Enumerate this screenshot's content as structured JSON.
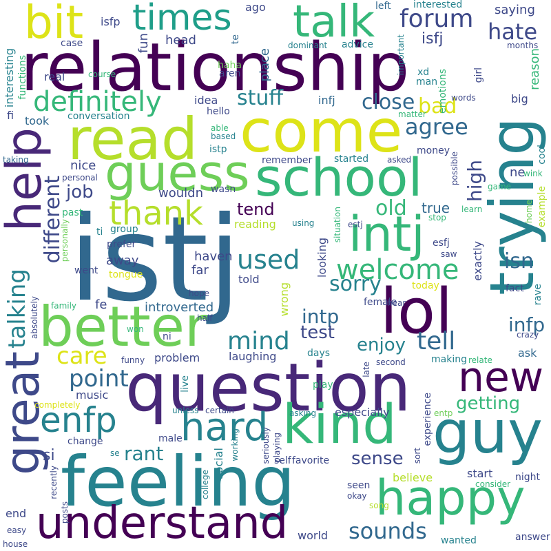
{
  "palette": {
    "c1": "#440154",
    "c2": "#482878",
    "c3": "#3e4989",
    "c4": "#31688e",
    "c5": "#26828e",
    "c6": "#1f9e89",
    "c7": "#35b779",
    "c8": "#6ece58",
    "c9": "#b5de2b",
    "c10": "#dde318"
  },
  "words": {
    "istj": "istj",
    "relationship": "relationship",
    "question": "question",
    "feeling": "feeling",
    "come": "come",
    "school": "school",
    "read": "read",
    "guess": "guess",
    "better": "better",
    "trying": "trying",
    "kind": "kind",
    "guy": "guy",
    "understand": "understand",
    "happy": "happy",
    "lol": "lol",
    "intj": "intj",
    "help": "help",
    "great": "great",
    "talk": "talk",
    "bit": "bit",
    "times": "times",
    "new": "new",
    "hard": "hard",
    "enfp": "enfp",
    "thank": "thank",
    "welcome": "welcome",
    "different": "different",
    "talking": "talking",
    "definitely": "definitely",
    "forum": "forum",
    "hate": "hate",
    "agree": "agree",
    "close": "close",
    "bad": "bad",
    "stuff": "stuff",
    "used": "used",
    "mind": "mind",
    "sorry": "sorry",
    "point": "point",
    "care": "care",
    "tell": "tell",
    "sounds": "sounds",
    "enjoy": "enjoy",
    "getting": "getting",
    "rant": "rant",
    "sense": "sense",
    "isn": "isn",
    "infp": "infp",
    "intp": "intp",
    "test": "test",
    "old": "old",
    "tend": "tend",
    "job": "job",
    "high": "high",
    "saying": "saying",
    "isfj": "isfj",
    "isfp": "isfp",
    "head": "head",
    "fun": "fun",
    "place": "place",
    "ago": "ago",
    "left": "left",
    "interested": "interested",
    "case": "case",
    "te": "te",
    "dominant": "dominant",
    "advice": "advice",
    "important": "important",
    "months": "months",
    "interesting": "interesting",
    "functions": "functions",
    "real": "real",
    "haha": "haha",
    "aren": "aren",
    "course": "course",
    "xd": "xd",
    "man": "man",
    "girl": "girl",
    "reason": "reason",
    "emotions": "emotions",
    "words": "words",
    "big": "big",
    "idea": "idea",
    "infj": "infj",
    "fi": "fi",
    "hello": "hello",
    "matter": "matter",
    "took": "took",
    "conversation": "conversation",
    "able": "able",
    "based": "based",
    "istp": "istp",
    "remember": "remember",
    "started": "started",
    "asked": "asked",
    "money": "money",
    "cool": "cool",
    "taking": "taking",
    "nice": "nice",
    "personal": "personal",
    "wouldn": "wouldn",
    "wasn": "wasn",
    "ne": "ne",
    "possible": "possible",
    "wink": "wink",
    "game": "game",
    "past": "past",
    "reading": "reading",
    "using": "using",
    "estj": "estj",
    "learn": "learn",
    "true": "true",
    "home": "home",
    "example": "example",
    "group": "group",
    "prefer": "prefer",
    "personally": "personally",
    "situation": "situation",
    "stop": "stop",
    "ti": "ti",
    "went": "went",
    "away": "away",
    "haven": "haven",
    "looking": "looking",
    "esfj": "esfj",
    "saw": "saw",
    "tongue": "tongue",
    "far": "far",
    "exactly": "exactly",
    "today": "today",
    "hope": "hope",
    "told": "told",
    "wrong": "wrong",
    "fact": "fact",
    "rave": "rave",
    "family": "family",
    "fe": "fe",
    "introverted": "introverted",
    "female": "female",
    "hear": "hear",
    "absolutely": "absolutely",
    "half": "half",
    "won": "won",
    "ni": "ni",
    "crazy": "crazy",
    "funny": "funny",
    "problem": "problem",
    "laughing": "laughing",
    "days": "days",
    "making": "making",
    "relate": "relate",
    "ask": "ask",
    "second": "second",
    "late": "late",
    "music": "music",
    "live": "live",
    "play": "play",
    "experience": "experience",
    "completely": "completely",
    "unless": "unless",
    "certain": "certain",
    "asking": "asking",
    "especially": "especially",
    "entp": "entp",
    "change": "change",
    "male": "male",
    "working": "working",
    "seriously": "seriously",
    "playing": "playing",
    "se": "se",
    "si": "si",
    "social": "social",
    "favorite": "favorite",
    "sort": "sort",
    "recently": "recently",
    "college": "college",
    "self": "self",
    "believe": "believe",
    "start": "start",
    "night": "night",
    "consider": "consider",
    "seen": "seen",
    "okay": "okay",
    "song": "song",
    "end": "end",
    "posts": "posts",
    "world": "world",
    "wanted": "wanted",
    "answer": "answer",
    "easy": "easy",
    "house": "house"
  }
}
